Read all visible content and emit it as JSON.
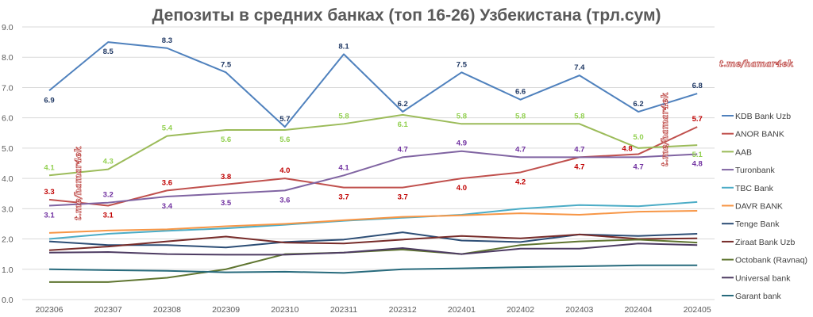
{
  "chart_data": {
    "type": "line",
    "title": "Депозиты в средних банках (топ 16-26) Узбекистана (трл.сум)",
    "xlabel": "",
    "ylabel": "",
    "ylim": [
      0,
      9
    ],
    "y_ticks": [
      "0.0",
      "1.0",
      "2.0",
      "3.0",
      "4.0",
      "5.0",
      "6.0",
      "7.0",
      "8.0",
      "9.0"
    ],
    "grid": true,
    "legend_position": "right",
    "categories": [
      "202306",
      "202307",
      "202308",
      "202309",
      "202310",
      "202311",
      "202312",
      "202401",
      "202402",
      "202403",
      "202404",
      "202405"
    ],
    "series": [
      {
        "name": "KDB Bank Uzb",
        "color": "#4f81bd",
        "label_color": "#1f3864",
        "labeled": true,
        "values": [
          6.9,
          8.5,
          8.3,
          7.5,
          5.7,
          8.1,
          6.2,
          7.5,
          6.6,
          7.4,
          6.2,
          6.8
        ]
      },
      {
        "name": "ANOR BANK",
        "color": "#c0504d",
        "label_color": "#c00000",
        "labeled": true,
        "values": [
          3.3,
          3.1,
          3.6,
          3.8,
          4.0,
          3.7,
          3.7,
          4.0,
          4.2,
          4.7,
          4.8,
          5.7
        ]
      },
      {
        "name": "AAB",
        "color": "#9bbb59",
        "label_color": "#92d050",
        "labeled": true,
        "values": [
          4.1,
          4.3,
          5.4,
          5.6,
          5.6,
          5.8,
          6.1,
          5.8,
          5.8,
          5.8,
          5.0,
          5.1
        ]
      },
      {
        "name": "Turonbank",
        "color": "#8064a2",
        "label_color": "#7030a0",
        "labeled": true,
        "values": [
          3.1,
          3.2,
          3.4,
          3.5,
          3.6,
          4.1,
          4.7,
          4.9,
          4.7,
          4.7,
          4.7,
          4.8
        ]
      },
      {
        "name": "TBC Bank",
        "color": "#4bacc6",
        "labeled": false,
        "values": [
          2.0,
          2.17,
          2.27,
          2.35,
          2.47,
          2.6,
          2.7,
          2.8,
          3.0,
          3.12,
          3.08,
          3.22
        ]
      },
      {
        "name": "DAVR BANK",
        "color": "#f79646",
        "labeled": false,
        "values": [
          2.2,
          2.28,
          2.32,
          2.42,
          2.5,
          2.62,
          2.73,
          2.78,
          2.85,
          2.8,
          2.9,
          2.93
        ]
      },
      {
        "name": "Tenge Bank",
        "color": "#2c4d75",
        "labeled": false,
        "values": [
          1.92,
          1.8,
          1.8,
          1.72,
          1.9,
          1.98,
          2.22,
          1.95,
          1.9,
          2.15,
          2.1,
          2.17
        ]
      },
      {
        "name": "Ziraat Bank Uzb",
        "color": "#772c2a",
        "labeled": false,
        "values": [
          1.63,
          1.75,
          1.92,
          2.08,
          1.88,
          1.85,
          1.98,
          2.1,
          2.02,
          2.15,
          2.0,
          2.02
        ]
      },
      {
        "name": "Octobank (Ravnaq)",
        "color": "#5f7530",
        "labeled": false,
        "values": [
          0.58,
          0.58,
          0.72,
          1.0,
          1.5,
          1.55,
          1.65,
          1.5,
          1.8,
          1.92,
          1.98,
          1.88
        ]
      },
      {
        "name": "Universal bank",
        "color": "#4d3b62",
        "labeled": false,
        "values": [
          1.55,
          1.57,
          1.5,
          1.48,
          1.48,
          1.55,
          1.7,
          1.5,
          1.68,
          1.68,
          1.85,
          1.8
        ]
      },
      {
        "name": "Garant bank",
        "color": "#276a7c",
        "labeled": false,
        "values": [
          1.0,
          0.97,
          0.95,
          0.9,
          0.92,
          0.88,
          1.0,
          1.03,
          1.07,
          1.1,
          1.13,
          1.13
        ]
      }
    ],
    "watermark": "t.me/hamar4ek"
  }
}
